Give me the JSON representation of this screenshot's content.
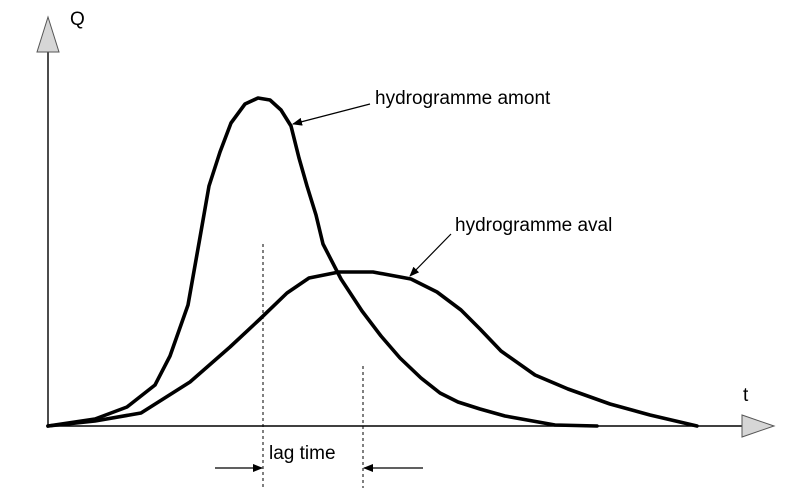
{
  "axes": {
    "y_label": "Q",
    "x_label": "t"
  },
  "labels": {
    "upstream": "hydrogramme amont",
    "downstream": "hydrogramme aval",
    "lag": "lag time"
  }
}
